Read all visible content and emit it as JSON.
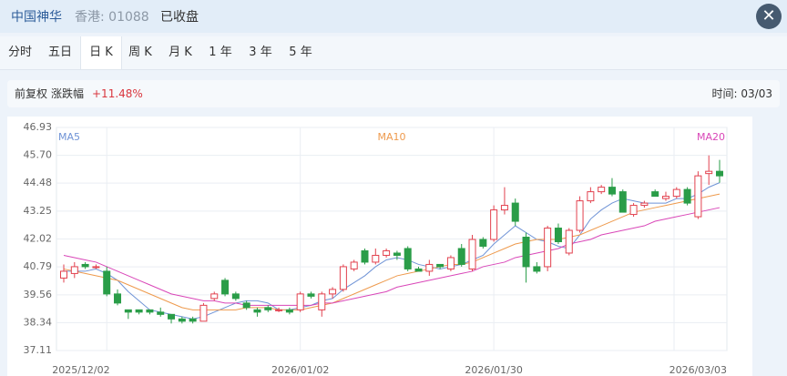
{
  "header": {
    "name": "中国神华",
    "market": "香港: 01088",
    "status": "已收盘"
  },
  "tabs": [
    "分时",
    "五日",
    "日 K",
    "周 K",
    "月 K",
    "1 年",
    "3 年",
    "5 年"
  ],
  "selected_tab": 2,
  "info": {
    "adjust": "前复权",
    "change_label": "涨跌幅",
    "change": "+11.48%",
    "time": "时间: 03/03"
  },
  "chart_data": {
    "type": "candlestick",
    "up_color": "#e2414e",
    "down_color": "#2a9d48",
    "categories": [
      null,
      null,
      null,
      null,
      "2025/12/02",
      null,
      null,
      null,
      null,
      null,
      null,
      null,
      null,
      null,
      null,
      null,
      null,
      null,
      null,
      null,
      null,
      null,
      "2026/01/02",
      null,
      null,
      null,
      null,
      null,
      null,
      null,
      null,
      null,
      null,
      null,
      null,
      null,
      null,
      null,
      null,
      null,
      "2026/01/30",
      null,
      null,
      null,
      null,
      null,
      null,
      null,
      null,
      null,
      null,
      null,
      null,
      null,
      null,
      null,
      null,
      null,
      null,
      null,
      null,
      "2026/03/03"
    ],
    "ohlc": [
      [
        40.3,
        40.9,
        40.1,
        40.6
      ],
      [
        40.5,
        41.0,
        40.3,
        40.8
      ],
      [
        40.9,
        41.0,
        40.7,
        40.8
      ],
      [
        40.8,
        40.9,
        40.7,
        40.8
      ],
      [
        40.6,
        40.8,
        39.5,
        39.6
      ],
      [
        39.6,
        39.8,
        39.1,
        39.2
      ],
      [
        38.9,
        38.9,
        38.5,
        38.8
      ],
      [
        38.9,
        38.9,
        38.7,
        38.8
      ],
      [
        38.9,
        38.9,
        38.7,
        38.8
      ],
      [
        38.8,
        39.0,
        38.6,
        38.7
      ],
      [
        38.7,
        38.7,
        38.3,
        38.5
      ],
      [
        38.5,
        38.6,
        38.3,
        38.4
      ],
      [
        38.5,
        38.6,
        38.3,
        38.4
      ],
      [
        38.4,
        39.2,
        38.4,
        39.1
      ],
      [
        39.4,
        39.7,
        39.3,
        39.6
      ],
      [
        40.2,
        40.3,
        39.5,
        39.6
      ],
      [
        39.6,
        39.7,
        39.3,
        39.4
      ],
      [
        39.2,
        39.3,
        38.9,
        39.0
      ],
      [
        38.9,
        39.0,
        38.6,
        38.8
      ],
      [
        39.0,
        39.1,
        38.8,
        38.9
      ],
      [
        38.9,
        39.0,
        38.8,
        38.9
      ],
      [
        38.9,
        39.0,
        38.7,
        38.8
      ],
      [
        38.9,
        39.7,
        38.8,
        39.6
      ],
      [
        39.6,
        39.7,
        39.4,
        39.5
      ],
      [
        38.9,
        39.7,
        38.6,
        39.6
      ],
      [
        39.6,
        39.9,
        39.4,
        39.8
      ],
      [
        39.8,
        40.9,
        39.7,
        40.8
      ],
      [
        40.7,
        41.1,
        40.6,
        41.0
      ],
      [
        41.5,
        41.6,
        40.9,
        41.0
      ],
      [
        41.0,
        41.6,
        40.9,
        41.3
      ],
      [
        41.3,
        41.6,
        41.2,
        41.5
      ],
      [
        41.4,
        41.5,
        41.1,
        41.3
      ],
      [
        41.6,
        41.7,
        40.6,
        40.7
      ],
      [
        40.7,
        40.8,
        40.6,
        40.6
      ],
      [
        40.6,
        41.1,
        40.4,
        40.9
      ],
      [
        40.9,
        40.9,
        40.7,
        40.8
      ],
      [
        40.7,
        41.3,
        40.6,
        41.2
      ],
      [
        41.6,
        41.8,
        40.8,
        40.9
      ],
      [
        40.7,
        42.2,
        40.6,
        42.0
      ],
      [
        42.0,
        42.1,
        41.6,
        41.7
      ],
      [
        42.0,
        43.5,
        41.9,
        43.3
      ],
      [
        43.3,
        44.3,
        43.1,
        43.5
      ],
      [
        43.6,
        43.8,
        42.6,
        42.8
      ],
      [
        42.1,
        42.3,
        40.1,
        40.8
      ],
      [
        40.8,
        41.0,
        40.5,
        40.6
      ],
      [
        40.8,
        42.6,
        40.6,
        42.5
      ],
      [
        42.5,
        42.7,
        41.8,
        41.9
      ],
      [
        41.4,
        42.5,
        41.3,
        42.4
      ],
      [
        42.4,
        43.9,
        42.3,
        43.7
      ],
      [
        43.7,
        44.3,
        43.6,
        44.1
      ],
      [
        44.1,
        44.4,
        44.0,
        44.3
      ],
      [
        44.3,
        44.7,
        43.9,
        44.0
      ],
      [
        44.1,
        44.2,
        43.2,
        43.2
      ],
      [
        43.1,
        43.6,
        43.0,
        43.5
      ],
      [
        43.5,
        43.7,
        43.4,
        43.6
      ],
      [
        44.1,
        44.2,
        43.9,
        43.9
      ],
      [
        43.8,
        44.1,
        43.7,
        43.9
      ],
      [
        43.9,
        44.3,
        43.8,
        44.2
      ],
      [
        44.2,
        44.3,
        43.5,
        43.6
      ],
      [
        43.0,
        45.0,
        42.9,
        44.8
      ],
      [
        44.9,
        45.7,
        44.4,
        45.0
      ],
      [
        45.0,
        45.5,
        44.5,
        44.8
      ]
    ],
    "series": [
      {
        "name": "MA5",
        "color": "#6f93d6",
        "values": [
          40.6,
          40.6,
          40.6,
          40.7,
          40.5,
          40.2,
          39.7,
          39.3,
          38.9,
          38.8,
          38.7,
          38.6,
          38.5,
          38.6,
          38.8,
          39.0,
          39.2,
          39.3,
          39.3,
          39.2,
          38.9,
          38.9,
          39.0,
          39.1,
          39.3,
          39.4,
          39.8,
          40.1,
          40.4,
          40.8,
          41.1,
          41.2,
          41.1,
          40.9,
          40.8,
          40.7,
          40.8,
          40.9,
          41.1,
          41.3,
          41.8,
          42.2,
          42.6,
          42.3,
          42.0,
          41.9,
          41.7,
          41.6,
          42.2,
          42.9,
          43.3,
          43.6,
          43.8,
          43.7,
          43.6,
          43.6,
          43.6,
          43.8,
          43.8,
          44.0,
          44.3,
          44.5
        ]
      },
      {
        "name": "MA10",
        "color": "#ee9a4d",
        "values": [
          40.7,
          40.6,
          40.5,
          40.4,
          40.3,
          40.2,
          40.0,
          39.8,
          39.6,
          39.4,
          39.2,
          39.0,
          38.9,
          38.9,
          38.9,
          38.9,
          38.9,
          39.0,
          39.0,
          39.0,
          38.9,
          38.9,
          38.9,
          39.0,
          39.1,
          39.2,
          39.4,
          39.6,
          39.8,
          40.0,
          40.2,
          40.4,
          40.5,
          40.6,
          40.7,
          40.8,
          40.9,
          40.9,
          41.0,
          41.2,
          41.4,
          41.6,
          41.8,
          41.9,
          42.0,
          42.0,
          42.0,
          42.1,
          42.2,
          42.4,
          42.6,
          42.8,
          43.0,
          43.2,
          43.3,
          43.4,
          43.5,
          43.6,
          43.7,
          43.8,
          43.9,
          44.0
        ]
      },
      {
        "name": "MA20",
        "color": "#d946b8",
        "values": [
          41.3,
          41.2,
          41.1,
          41.0,
          40.8,
          40.6,
          40.4,
          40.2,
          40.0,
          39.8,
          39.6,
          39.5,
          39.4,
          39.3,
          39.3,
          39.2,
          39.2,
          39.1,
          39.1,
          39.1,
          39.1,
          39.1,
          39.1,
          39.1,
          39.2,
          39.2,
          39.3,
          39.4,
          39.5,
          39.6,
          39.7,
          39.9,
          40.0,
          40.1,
          40.2,
          40.3,
          40.4,
          40.5,
          40.6,
          40.8,
          40.9,
          41.0,
          41.2,
          41.3,
          41.4,
          41.5,
          41.6,
          41.8,
          41.9,
          42.0,
          42.2,
          42.3,
          42.4,
          42.5,
          42.6,
          42.8,
          42.9,
          43.0,
          43.1,
          43.2,
          43.3,
          43.4
        ]
      }
    ],
    "ylim": [
      37.11,
      46.93
    ],
    "yticks": [
      46.93,
      {
        "value": 45.7,
        "label": "45.70"
      },
      44.48,
      43.25,
      42.02,
      40.79,
      39.56,
      38.34,
      37.11
    ],
    "grid": true
  }
}
